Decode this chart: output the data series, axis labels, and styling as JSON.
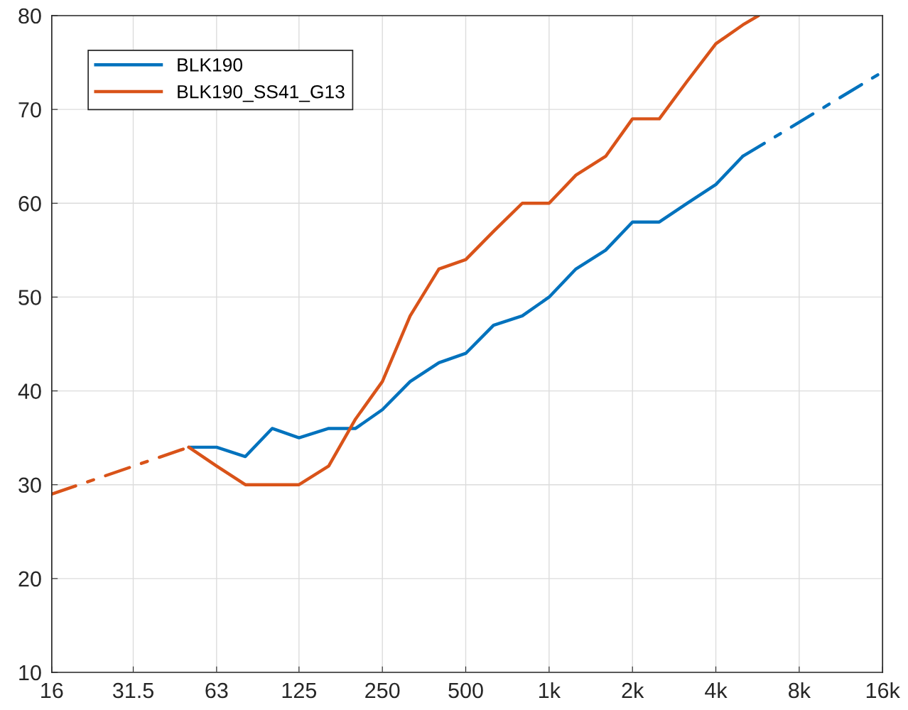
{
  "chart_data": {
    "type": "line",
    "log": "x",
    "grid": true,
    "legend": "top left",
    "xlim": [
      16,
      16000
    ],
    "ylim": [
      10,
      80
    ],
    "xticks": [
      16,
      31.5,
      63,
      125,
      250,
      500,
      {
        "value": 1000,
        "label": "1k"
      },
      {
        "value": 2000,
        "label": "2k"
      },
      {
        "value": 4000,
        "label": "4k"
      },
      {
        "value": 8000,
        "label": "8k"
      },
      {
        "value": 16000,
        "label": "16k"
      }
    ],
    "yticks": [
      10,
      20,
      30,
      40,
      50,
      60,
      70,
      80
    ],
    "series": [
      {
        "name": "BLK190",
        "color": "#0072bd",
        "line_style": "solid",
        "x": [
          50,
          63,
          80,
          100,
          125,
          160,
          200,
          250,
          315,
          400,
          500,
          630,
          800,
          1000,
          1250,
          1600,
          2000,
          2500,
          3150,
          4000,
          5000
        ],
        "values": [
          34,
          34,
          33,
          36,
          35,
          36,
          36,
          38,
          41,
          43,
          44,
          47,
          48,
          50,
          53,
          55,
          58,
          58,
          60,
          62,
          65
        ]
      },
      {
        "color": "#0072bd",
        "line_style": "dashed",
        "x": [
          5000,
          16000
        ],
        "values": [
          65,
          74
        ]
      },
      {
        "name": "BLK190_SS41_G13",
        "color": "#d95319",
        "line_style": "solid",
        "x": [
          50,
          63,
          80,
          100,
          125,
          160,
          200,
          250,
          315,
          400,
          500,
          630,
          800,
          1000,
          1250,
          1600,
          2000,
          2500,
          3150,
          4000,
          5000,
          5700
        ],
        "values": [
          34,
          32,
          30,
          30,
          30,
          32,
          37,
          41,
          48,
          53,
          54,
          57,
          60,
          60,
          63,
          65,
          69,
          69,
          73,
          77,
          79,
          80
        ]
      },
      {
        "color": "#d95319",
        "line_style": "dashed",
        "x": [
          16,
          50
        ],
        "values": [
          29,
          34
        ]
      }
    ]
  }
}
